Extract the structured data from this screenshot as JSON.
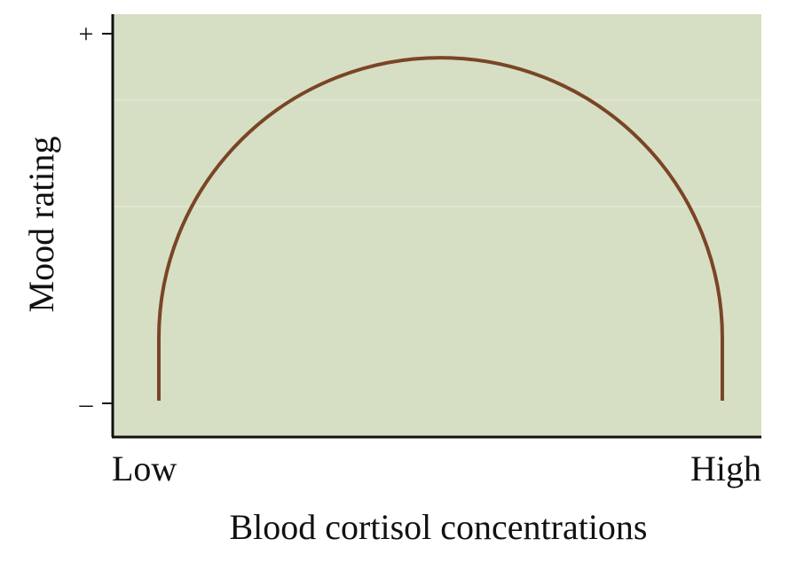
{
  "chart_data": {
    "type": "line",
    "title": "",
    "xlabel": "Blood cortisol concentrations",
    "ylabel": "Mood rating",
    "x_tick_labels": [
      "Low",
      "High"
    ],
    "y_tick_labels": [
      "–",
      "+"
    ],
    "grid": true,
    "ylim": [
      0,
      1
    ],
    "xlim": [
      0,
      1
    ],
    "series": [
      {
        "color": "#7a4526",
        "points": [
          {
            "x": 0.0,
            "y": 0.0
          },
          {
            "x": 0.0,
            "y": 0.17
          },
          {
            "x": 0.05,
            "y": 0.52
          },
          {
            "x": 0.15,
            "y": 0.74
          },
          {
            "x": 0.3,
            "y": 0.88
          },
          {
            "x": 0.5,
            "y": 0.93
          },
          {
            "x": 0.7,
            "y": 0.88
          },
          {
            "x": 0.85,
            "y": 0.74
          },
          {
            "x": 0.95,
            "y": 0.52
          },
          {
            "x": 1.0,
            "y": 0.17
          },
          {
            "x": 1.0,
            "y": 0.0
          }
        ]
      }
    ]
  },
  "colors": {
    "plot_background": "#d6dfc4",
    "axis": "#111111",
    "grid": "#e8eddc",
    "curve": "#7a4526"
  }
}
